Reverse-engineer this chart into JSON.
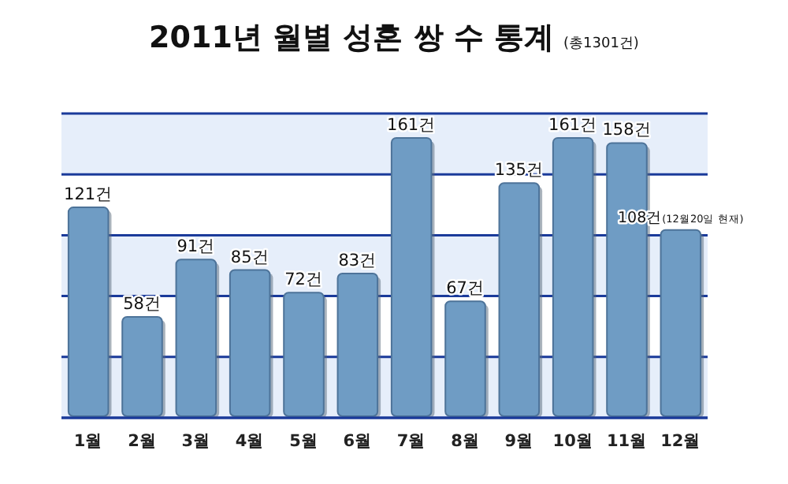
{
  "chart_data": {
    "type": "bar",
    "title": "2011년 월별 성혼 쌍 수 통계",
    "subtitle": "(총1301건)",
    "categories": [
      "1월",
      "2월",
      "3월",
      "4월",
      "5월",
      "6월",
      "7월",
      "8월",
      "9월",
      "10월",
      "11월",
      "12월"
    ],
    "values": [
      121,
      58,
      91,
      85,
      72,
      83,
      161,
      67,
      135,
      161,
      158,
      108
    ],
    "value_labels": [
      "121건",
      "58건",
      "91건",
      "85건",
      "72건",
      "83건",
      "161건",
      "67건",
      "135건",
      "161건",
      "158건",
      "108건(12월20일 현재)"
    ],
    "color": "#6f9cc4",
    "ylim": [
      0,
      175
    ],
    "yticks": [
      {
        "value": 0,
        "label": null
      },
      {
        "value": 35,
        "label": null
      },
      {
        "value": 70,
        "label": null
      },
      {
        "value": 105,
        "label": null
      },
      {
        "value": 140,
        "label": null
      },
      {
        "value": 175,
        "label": null
      }
    ],
    "grid": "y",
    "tick_labels": "x",
    "bands": [
      {
        "axis": "y",
        "from": 0,
        "to": 35,
        "color": "#e6eefa"
      },
      {
        "axis": "y",
        "from": 70,
        "to": 105,
        "color": "#e6eefa"
      },
      {
        "axis": "y",
        "from": 140,
        "to": 175,
        "color": "#e6eefa"
      }
    ]
  }
}
